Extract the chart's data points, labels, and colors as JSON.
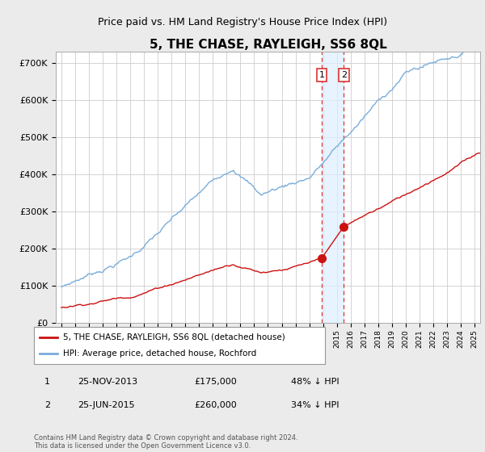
{
  "title": "5, THE CHASE, RAYLEIGH, SS6 8QL",
  "subtitle": "Price paid vs. HM Land Registry's House Price Index (HPI)",
  "title_fontsize": 11,
  "subtitle_fontsize": 9,
  "background_color": "#ebebeb",
  "plot_bg_color": "#ffffff",
  "grid_color": "#cccccc",
  "hpi_color": "#7aaddb",
  "price_color": "#cc1111",
  "marker_color": "#cc1111",
  "dashed_line_color": "#dd3333",
  "shaded_color": "#ddeeff",
  "ylim": [
    0,
    730000
  ],
  "yticks": [
    0,
    100000,
    200000,
    300000,
    400000,
    500000,
    600000,
    700000
  ],
  "ytick_labels": [
    "£0",
    "£100K",
    "£200K",
    "£300K",
    "£400K",
    "£500K",
    "£600K",
    "£700K"
  ],
  "sale1_date": 2013.9,
  "sale1_price": 175000,
  "sale1_label": "1",
  "sale2_date": 2015.5,
  "sale2_price": 260000,
  "sale2_label": "2",
  "legend1": "5, THE CHASE, RAYLEIGH, SS6 8QL (detached house)",
  "legend2": "HPI: Average price, detached house, Rochford",
  "table1_num": "1",
  "table1_date": "25-NOV-2013",
  "table1_price": "£175,000",
  "table1_pct": "48% ↓ HPI",
  "table2_num": "2",
  "table2_date": "25-JUN-2015",
  "table2_price": "£260,000",
  "table2_pct": "34% ↓ HPI",
  "footer": "Contains HM Land Registry data © Crown copyright and database right 2024.\nThis data is licensed under the Open Government Licence v3.0."
}
